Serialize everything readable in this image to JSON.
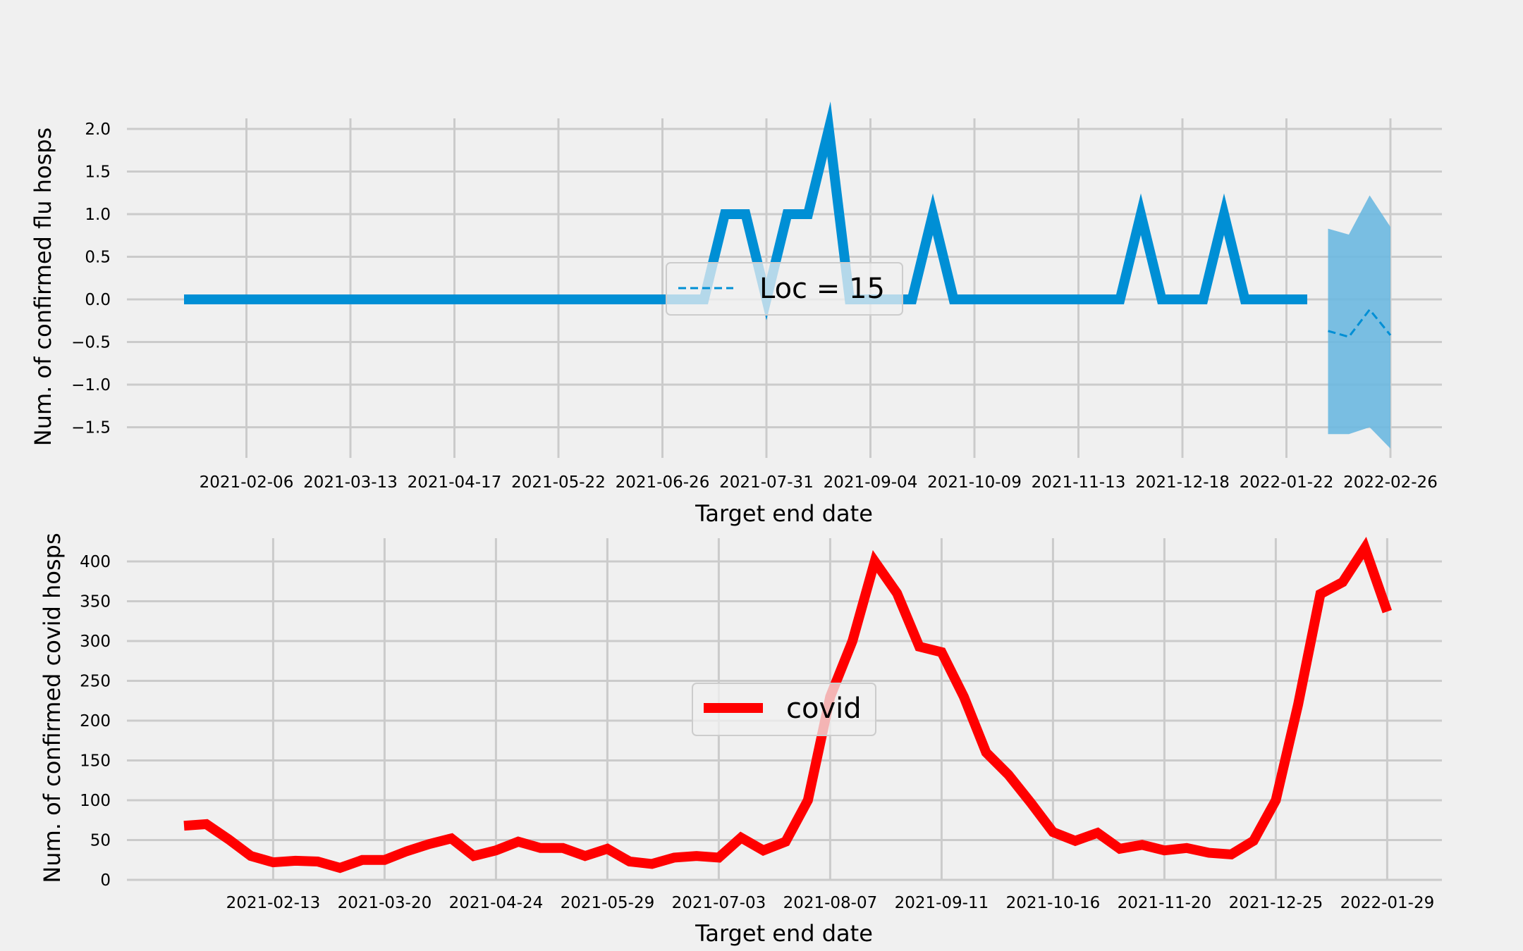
{
  "colors": {
    "background": "#f0f0f0",
    "grid": "#cbcbcb",
    "flu_line": "#008fd5",
    "flu_band": "#6bb8e0",
    "covid_line": "#ff0000"
  },
  "chart_data": [
    {
      "type": "line",
      "xlabel": "Target end date",
      "ylabel": "Num. of confirmed flu hosps",
      "x_ticks": [
        "2021-02-06",
        "2021-03-13",
        "2021-04-17",
        "2021-05-22",
        "2021-06-26",
        "2021-07-31",
        "2021-09-04",
        "2021-10-09",
        "2021-11-13",
        "2021-12-18",
        "2022-01-22",
        "2022-02-26"
      ],
      "y_ticks": [
        -1.5,
        -1.0,
        -0.5,
        0.0,
        0.5,
        1.0,
        1.5,
        2.0
      ],
      "y_tick_labels": [
        "−1.5",
        "−1.0",
        "−0.5",
        "0.0",
        "0.5",
        "1.0",
        "1.5",
        "2.0"
      ],
      "ylim": [
        -1.75,
        2.1
      ],
      "grid": true,
      "legend": {
        "location": "center",
        "entries": [
          {
            "label": "Loc = 15",
            "style": "dashed"
          }
        ]
      },
      "series": [
        {
          "x": [
            "2021-01-16",
            "2021-01-23",
            "2021-01-30",
            "2021-02-06",
            "2021-02-13",
            "2021-02-20",
            "2021-02-27",
            "2021-03-06",
            "2021-03-13",
            "2021-03-20",
            "2021-03-27",
            "2021-04-03",
            "2021-04-10",
            "2021-04-17",
            "2021-04-24",
            "2021-05-01",
            "2021-05-08",
            "2021-05-15",
            "2021-05-22",
            "2021-05-29",
            "2021-06-05",
            "2021-06-12",
            "2021-06-19",
            "2021-06-26",
            "2021-07-03",
            "2021-07-10",
            "2021-07-17",
            "2021-07-24",
            "2021-07-31",
            "2021-08-07",
            "2021-08-14",
            "2021-08-21",
            "2021-08-28",
            "2021-09-04",
            "2021-09-11",
            "2021-09-18",
            "2021-09-25",
            "2021-10-02",
            "2021-10-09",
            "2021-10-16",
            "2021-10-23",
            "2021-10-30",
            "2021-11-06",
            "2021-11-13",
            "2021-11-20",
            "2021-11-27",
            "2021-12-04",
            "2021-12-11",
            "2021-12-18",
            "2021-12-25",
            "2022-01-01",
            "2022-01-08",
            "2022-01-15",
            "2022-01-22",
            "2022-01-29"
          ],
          "values": [
            0,
            0,
            0,
            0,
            0,
            0,
            0,
            0,
            0,
            0,
            0,
            0,
            0,
            0,
            0,
            0,
            0,
            0,
            0,
            0,
            0,
            0,
            0,
            0,
            0,
            0,
            1,
            1,
            0,
            1,
            1,
            2,
            0,
            0,
            0,
            0,
            1,
            0,
            0,
            0,
            0,
            0,
            0,
            0,
            0,
            0,
            1,
            0,
            0,
            0,
            1,
            0,
            0,
            0,
            0
          ]
        },
        {
          "name": "Loc = 15",
          "x": [
            "2022-02-05",
            "2022-02-12",
            "2022-02-19",
            "2022-02-26"
          ],
          "values": [
            -0.37,
            -0.44,
            -0.12,
            -0.42
          ],
          "lower": [
            -1.58,
            -1.58,
            -1.5,
            -1.75
          ],
          "upper": [
            0.83,
            0.76,
            1.22,
            0.85
          ]
        }
      ]
    },
    {
      "type": "line",
      "xlabel": "Target end date",
      "ylabel": "Num. of confirmed covid hosps",
      "x_ticks": [
        "2021-02-13",
        "2021-03-20",
        "2021-04-24",
        "2021-05-29",
        "2021-07-03",
        "2021-08-07",
        "2021-09-11",
        "2021-10-16",
        "2021-11-20",
        "2021-12-25",
        "2022-01-29"
      ],
      "y_ticks": [
        0,
        50,
        100,
        150,
        200,
        250,
        300,
        350,
        400
      ],
      "y_tick_labels": [
        "0",
        "50",
        "100",
        "150",
        "200",
        "250",
        "300",
        "350",
        "400"
      ],
      "ylim": [
        -15,
        432
      ],
      "grid": true,
      "legend": {
        "location": "center",
        "entries": [
          {
            "label": "covid",
            "style": "solid"
          }
        ]
      },
      "series": [
        {
          "name": "covid",
          "x": [
            "2021-01-16",
            "2021-01-23",
            "2021-01-30",
            "2021-02-06",
            "2021-02-13",
            "2021-02-20",
            "2021-02-27",
            "2021-03-06",
            "2021-03-13",
            "2021-03-20",
            "2021-03-27",
            "2021-04-03",
            "2021-04-10",
            "2021-04-17",
            "2021-04-24",
            "2021-05-01",
            "2021-05-08",
            "2021-05-15",
            "2021-05-22",
            "2021-05-29",
            "2021-06-05",
            "2021-06-12",
            "2021-06-19",
            "2021-06-26",
            "2021-07-03",
            "2021-07-10",
            "2021-07-17",
            "2021-07-24",
            "2021-07-31",
            "2021-08-07",
            "2021-08-14",
            "2021-08-21",
            "2021-08-28",
            "2021-09-04",
            "2021-09-11",
            "2021-09-18",
            "2021-09-25",
            "2021-10-02",
            "2021-10-09",
            "2021-10-16",
            "2021-10-23",
            "2021-10-30",
            "2021-11-06",
            "2021-11-13",
            "2021-11-20",
            "2021-11-27",
            "2021-12-04",
            "2021-12-11",
            "2021-12-18",
            "2021-12-25",
            "2022-01-01",
            "2022-01-08",
            "2022-01-15",
            "2022-01-22",
            "2022-01-29"
          ],
          "values": [
            68,
            70,
            51,
            30,
            22,
            24,
            23,
            15,
            25,
            25,
            36,
            45,
            52,
            30,
            37,
            48,
            40,
            40,
            30,
            39,
            23,
            20,
            28,
            30,
            28,
            53,
            37,
            48,
            100,
            230,
            300,
            400,
            360,
            293,
            286,
            230,
            160,
            132,
            97,
            60,
            49,
            59,
            39,
            44,
            37,
            40,
            34,
            32,
            49,
            100,
            220,
            359,
            374,
            417,
            337
          ]
        }
      ]
    }
  ]
}
